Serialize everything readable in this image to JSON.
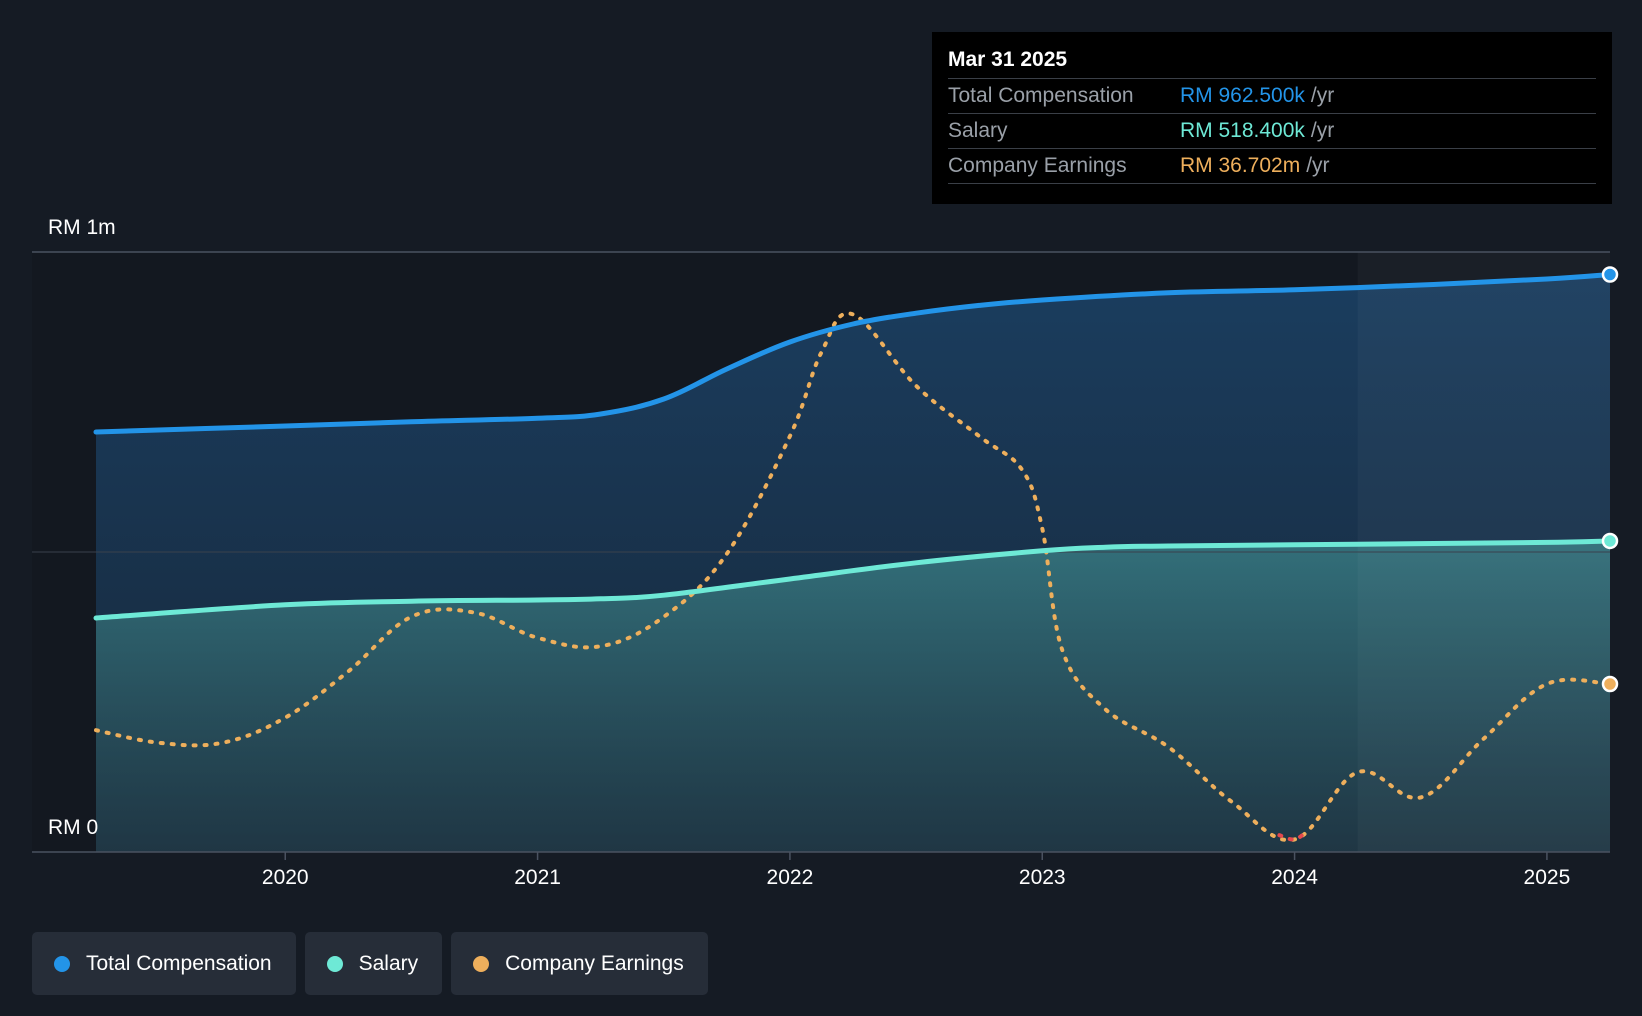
{
  "tooltip": {
    "date": "Mar 31 2025",
    "rows": [
      {
        "label": "Total Compensation",
        "value": "RM 962.500k",
        "unit": "/yr",
        "color": "#2394e8"
      },
      {
        "label": "Salary",
        "value": "RM 518.400k",
        "unit": "/yr",
        "color": "#6ee9d6"
      },
      {
        "label": "Company Earnings",
        "value": "RM 36.702m",
        "unit": "/yr",
        "color": "#eeaf5c"
      }
    ]
  },
  "legend": [
    {
      "label": "Total Compensation",
      "color": "#2394e8"
    },
    {
      "label": "Salary",
      "color": "#6ee9d6"
    },
    {
      "label": "Company Earnings",
      "color": "#eeaf5c"
    }
  ],
  "chart_data": {
    "type": "area",
    "y_max_label": "RM 1m",
    "y_min_label": "RM 0",
    "ylim": [
      0,
      1000000
    ],
    "x_range": [
      2019.25,
      2025.25
    ],
    "x_ticks": [
      "2020",
      "2021",
      "2022",
      "2023",
      "2024",
      "2025"
    ],
    "forecast_start": 2024.25,
    "series": [
      {
        "name": "Total Compensation",
        "color": "#2394e8",
        "x": [
          2019.25,
          2020,
          2020.5,
          2021,
          2021.25,
          2021.5,
          2021.75,
          2022,
          2022.25,
          2022.5,
          2022.75,
          2023,
          2023.5,
          2024,
          2024.5,
          2025,
          2025.25
        ],
        "values": [
          700000,
          710000,
          717000,
          723000,
          730000,
          755000,
          805000,
          850000,
          880000,
          898000,
          911000,
          920000,
          932000,
          937000,
          945000,
          955000,
          962500
        ]
      },
      {
        "name": "Salary",
        "color": "#6ee9d6",
        "x": [
          2019.25,
          2020,
          2020.5,
          2021,
          2021.25,
          2021.5,
          2022,
          2022.5,
          2023,
          2023.25,
          2023.5,
          2024,
          2024.5,
          2025,
          2025.25
        ],
        "values": [
          390000,
          412000,
          418000,
          420000,
          422000,
          428000,
          455000,
          482000,
          502000,
          508000,
          510000,
          512000,
          514000,
          516000,
          518400
        ]
      },
      {
        "name": "Company Earnings",
        "color": "#eeaf5c",
        "x": [
          2019.25,
          2019.5,
          2019.75,
          2020,
          2020.25,
          2020.5,
          2020.75,
          2021,
          2021.25,
          2021.5,
          2021.75,
          2022,
          2022.125,
          2022.25,
          2022.5,
          2022.75,
          2022.92,
          2023,
          2023.08,
          2023.25,
          2023.5,
          2023.75,
          2024,
          2024.25,
          2024.5,
          2024.75,
          2025,
          2025.25
        ],
        "values": [
          29,
          26,
          26,
          32,
          43,
          56,
          57,
          51,
          49,
          56,
          71,
          99,
          119,
          128,
          111,
          99,
          91,
          77,
          48,
          34,
          25,
          12,
          3,
          19,
          13,
          27,
          40,
          40
        ],
        "unit": "RM m (scaled to shared axis)"
      }
    ]
  }
}
